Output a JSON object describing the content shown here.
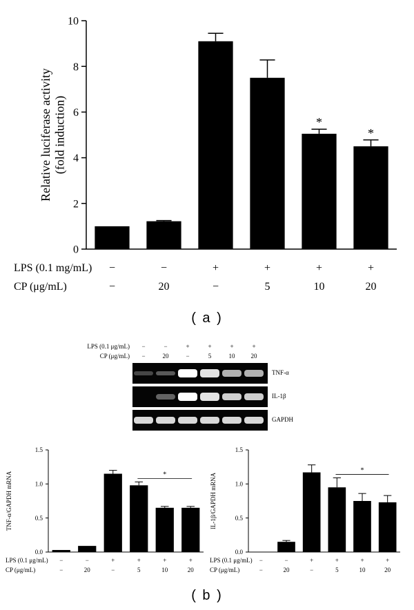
{
  "panel_labels": {
    "a": "( a )",
    "b": "( b )"
  },
  "chart_data": [
    {
      "type": "bar",
      "id": "a",
      "title": "",
      "ylabel": "Relative luciferase activity\n(fold induction)",
      "ylim": [
        0,
        10
      ],
      "yticks": [
        0,
        2,
        4,
        6,
        8,
        10
      ],
      "values": [
        1.0,
        1.22,
        9.1,
        7.5,
        5.05,
        4.5
      ],
      "errors": [
        0.0,
        0.03,
        0.35,
        0.78,
        0.2,
        0.28
      ],
      "significant": [
        false,
        false,
        false,
        false,
        true,
        true
      ],
      "significance_marker": "*",
      "conditions": [
        {
          "label": "LPS (0.1 mg/mL)",
          "values": [
            "−",
            "−",
            "+",
            "+",
            "+",
            "+"
          ]
        },
        {
          "label": "CP (μg/mL)",
          "values": [
            "−",
            "20",
            "−",
            "5",
            "10",
            "20"
          ]
        }
      ],
      "bar_color": "#000000"
    },
    {
      "type": "bar",
      "id": "b-left",
      "title": "",
      "ylabel": "TNF-α/GAPDH mRNA",
      "ylim": [
        0,
        1.5
      ],
      "yticks": [
        "0.0",
        "0.5",
        "1.0",
        "1.5"
      ],
      "values": [
        0.03,
        0.09,
        1.15,
        0.98,
        0.65,
        0.65
      ],
      "errors": [
        0.0,
        0.0,
        0.05,
        0.05,
        0.02,
        0.02
      ],
      "significance_bar": {
        "from": 3,
        "to": 5,
        "marker": "*"
      },
      "conditions": [
        {
          "label": "LPS (0.1 μg/mL)",
          "values": [
            "−",
            "−",
            "+",
            "+",
            "+",
            "+"
          ]
        },
        {
          "label": "CP (μg/mL)",
          "values": [
            "−",
            "20",
            "−",
            "5",
            "10",
            "20"
          ]
        }
      ],
      "bar_color": "#000000"
    },
    {
      "type": "bar",
      "id": "b-right",
      "title": "",
      "ylabel": "IL-1β/GAPDH mRNA",
      "ylim": [
        0,
        1.5
      ],
      "yticks": [
        "0.0",
        "0.5",
        "1.0",
        "1.5"
      ],
      "values": [
        0.0,
        0.15,
        1.17,
        0.95,
        0.75,
        0.73
      ],
      "errors": [
        0.0,
        0.02,
        0.11,
        0.14,
        0.11,
        0.1
      ],
      "significance_bar": {
        "from": 3,
        "to": 5,
        "marker": "*"
      },
      "conditions": [
        {
          "label": "LPS (0.1 μg/mL)",
          "values": [
            "−",
            "−",
            "+",
            "+",
            "+",
            "+"
          ]
        },
        {
          "label": "CP (μg/mL)",
          "values": [
            "−",
            "20",
            "−",
            "5",
            "10",
            "20"
          ]
        }
      ],
      "bar_color": "#000000"
    }
  ],
  "gel": {
    "header": [
      {
        "label": "LPS (0.1 μg/mL)",
        "values": [
          "−",
          "−",
          "+",
          "+",
          "+",
          "+"
        ]
      },
      {
        "label": "CP (μg/mL)",
        "values": [
          "−",
          "20",
          "−",
          "5",
          "10",
          "20"
        ]
      }
    ],
    "rows": [
      {
        "label": "TNF-α",
        "intensity": [
          0.05,
          0.15,
          1.0,
          0.85,
          0.6,
          0.6
        ]
      },
      {
        "label": "IL-1β",
        "intensity": [
          0.0,
          0.2,
          1.0,
          0.85,
          0.75,
          0.75
        ]
      },
      {
        "label": "GAPDH",
        "intensity": [
          0.8,
          0.8,
          0.8,
          0.8,
          0.8,
          0.8
        ]
      }
    ]
  }
}
